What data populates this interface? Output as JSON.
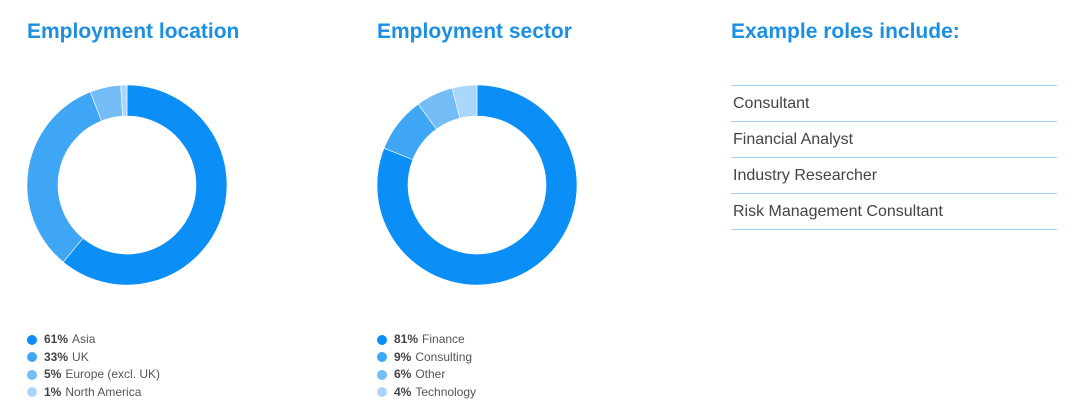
{
  "colors": {
    "title": "#1a8fe3",
    "segments": [
      "#0b8ef5",
      "#3fa6f5",
      "#74bdf6",
      "#a9d6fa"
    ],
    "divider": "#9fd0f0"
  },
  "chart_data": [
    {
      "type": "pie",
      "title": "Employment location",
      "donut": true,
      "categories": [
        "Asia",
        "UK",
        "Europe (excl. UK)",
        "North America"
      ],
      "values": [
        61,
        33,
        5,
        1
      ],
      "value_labels": [
        "61%",
        "33%",
        "5%",
        "1%"
      ],
      "legend_position": "bottom-left"
    },
    {
      "type": "pie",
      "title": "Employment sector",
      "donut": true,
      "categories": [
        "Finance",
        "Consulting",
        "Other",
        "Technology"
      ],
      "values": [
        81,
        9,
        6,
        4
      ],
      "value_labels": [
        "81%",
        "9%",
        "6%",
        "4%"
      ],
      "legend_position": "bottom-left"
    }
  ],
  "roles": {
    "title": "Example roles include:",
    "items": [
      "Consultant",
      "Financial Analyst",
      "Industry Researcher",
      "Risk Management Consultant"
    ]
  }
}
